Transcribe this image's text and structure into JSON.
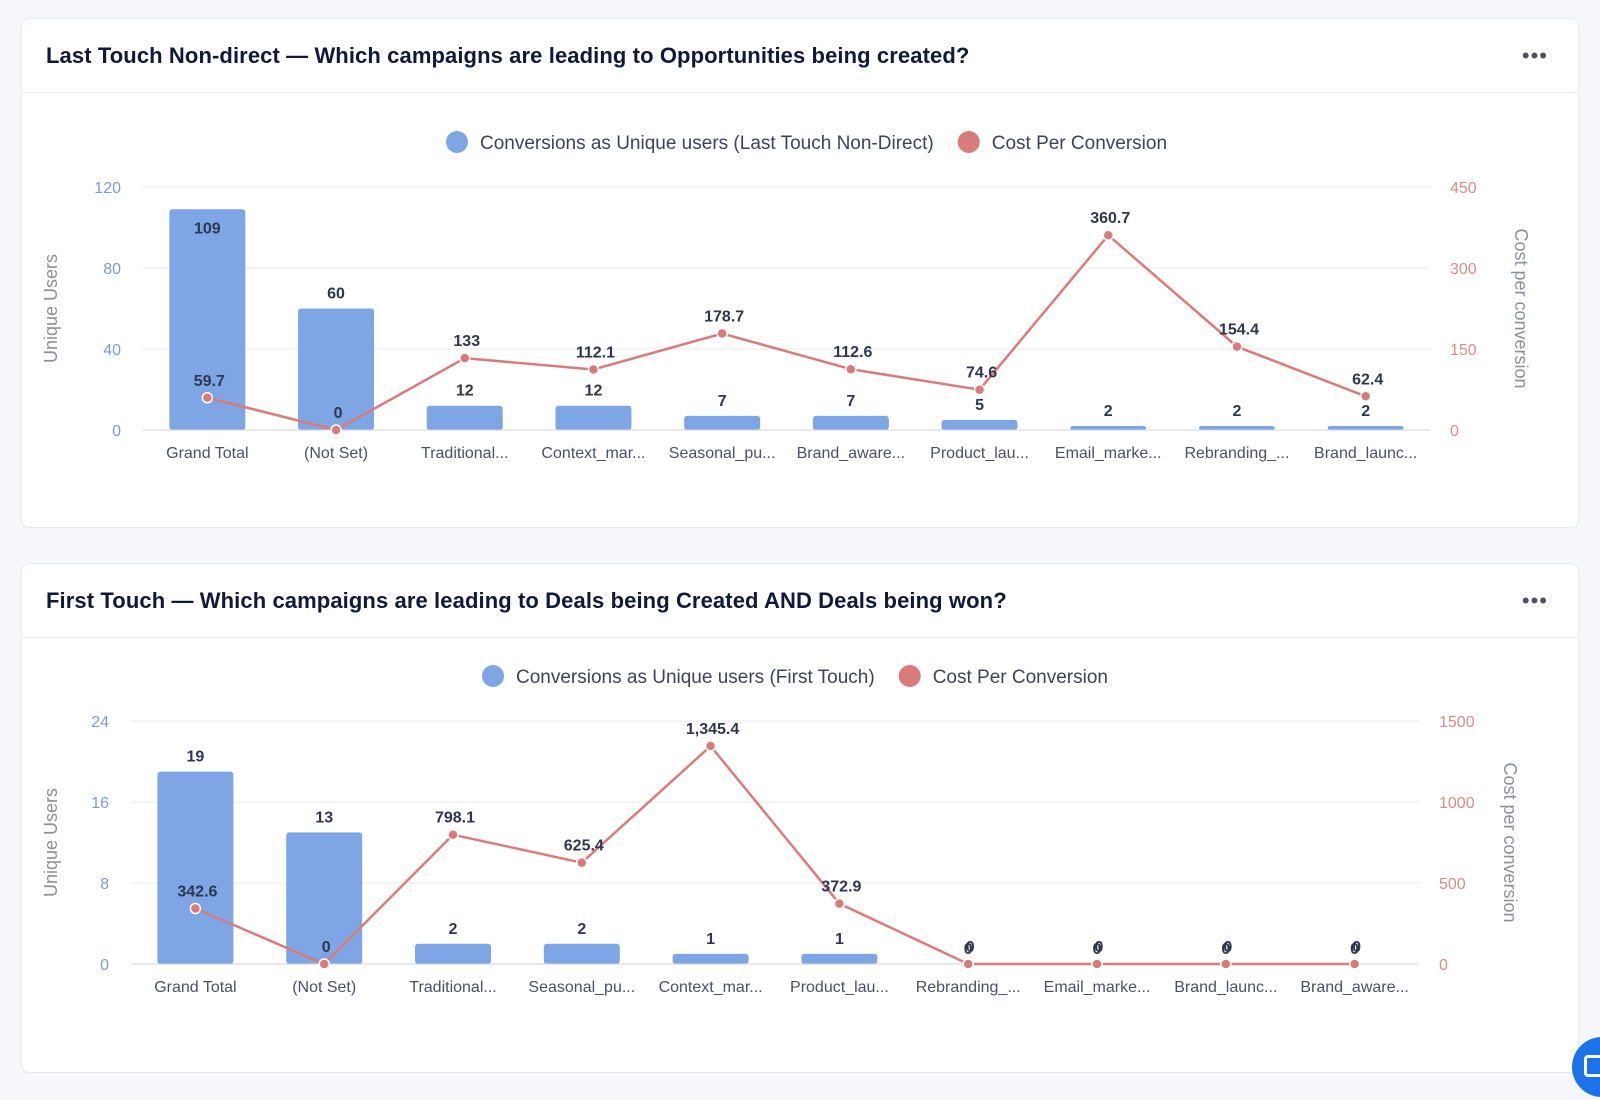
{
  "colors": {
    "bar": "#7ea6e4",
    "line": "#d97b7b",
    "grid": "#e6e8ee"
  },
  "cards": [
    {
      "title": "Last Touch Non-direct — Which campaigns are leading to Opportunities being created?",
      "more_icon": "more-horizontal-icon",
      "chart_data": {
        "type": "bar",
        "legend": [
          "Conversions as Unique users (Last Touch Non-Direct)",
          "Cost Per Conversion"
        ],
        "categories": [
          "Grand Total",
          "(Not Set)",
          "Traditional...",
          "Context_mar...",
          "Seasonal_pu...",
          "Brand_aware...",
          "Product_lau...",
          "Email_marke...",
          "Rebranding_...",
          "Brand_launc..."
        ],
        "series": [
          {
            "name": "Conversions as Unique users (Last Touch Non-Direct)",
            "type": "bar",
            "axis": "left",
            "values": [
              109,
              60,
              12,
              12,
              7,
              7,
              5,
              2,
              2,
              2
            ]
          },
          {
            "name": "Cost Per Conversion",
            "type": "line",
            "axis": "right",
            "values": [
              59.7,
              0,
              133,
              112.1,
              178.7,
              112.6,
              74.6,
              360.7,
              154.4,
              62.4
            ]
          }
        ],
        "ylabel": "Unique Users",
        "ylabel_right": "Cost per conversion",
        "ylim": [
          0,
          120
        ],
        "yticks": [
          0,
          40,
          80,
          120
        ],
        "ylim_right": [
          0,
          450
        ],
        "yticks_right": [
          0,
          150,
          300,
          450
        ]
      }
    },
    {
      "title": "First Touch — Which campaigns are leading to Deals being Created AND Deals being won?",
      "more_icon": "more-horizontal-icon",
      "chart_data": {
        "type": "bar",
        "legend": [
          "Conversions as Unique users (First Touch)",
          "Cost Per Conversion"
        ],
        "categories": [
          "Grand Total",
          "(Not Set)",
          "Traditional...",
          "Seasonal_pu...",
          "Context_mar...",
          "Product_lau...",
          "Rebranding_...",
          "Email_marke...",
          "Brand_launc...",
          "Brand_aware..."
        ],
        "series": [
          {
            "name": "Conversions as Unique users (First Touch)",
            "type": "bar",
            "axis": "left",
            "values": [
              19,
              13,
              2,
              2,
              1,
              1,
              0,
              0,
              0,
              0
            ]
          },
          {
            "name": "Cost Per Conversion",
            "type": "line",
            "axis": "right",
            "values": [
              342.6,
              0,
              798.1,
              625.4,
              1345.4,
              372.9,
              0,
              0,
              0,
              0
            ],
            "labels": [
              "342.6",
              "0",
              "798.1",
              "625.4",
              "1,345.4",
              "372.9",
              "0",
              "0",
              "0",
              "0"
            ]
          }
        ],
        "ylabel": "Unique Users",
        "ylabel_right": "Cost per conversion",
        "ylim": [
          0,
          24
        ],
        "yticks": [
          0,
          8,
          16,
          24
        ],
        "ylim_right": [
          0,
          1500
        ],
        "yticks_right": [
          0,
          500,
          1000,
          1500
        ]
      }
    }
  ]
}
